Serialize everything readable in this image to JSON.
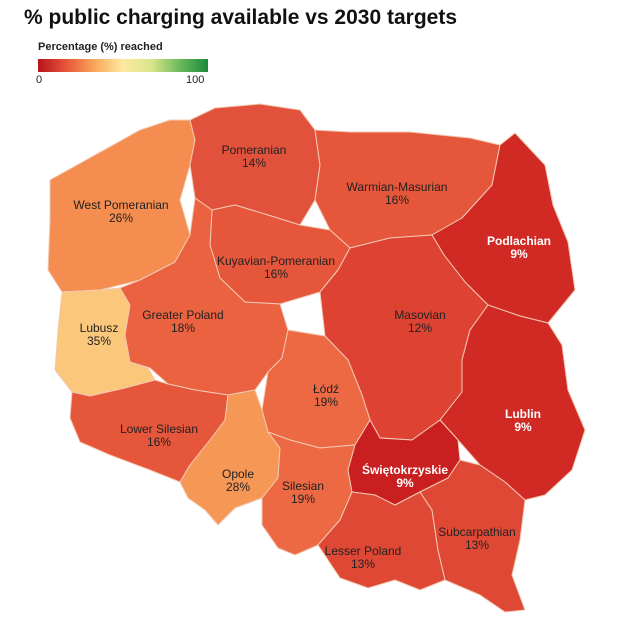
{
  "title": "% public charging available vs 2030 targets",
  "legend": {
    "title": "Percentage (%) reached",
    "min_label": "0",
    "max_label": "100",
    "range": [
      0,
      100
    ],
    "colors": [
      "#b7141c",
      "#e8553a",
      "#f8a85a",
      "#fde9a0",
      "#d8e68a",
      "#6cba5c",
      "#1b8a3c"
    ]
  },
  "map_data": {
    "type": "choropleth",
    "country": "Poland",
    "unit": "%",
    "regions": [
      {
        "id": "pomeranian",
        "name": "Pomeranian",
        "value": 14,
        "label": "14%",
        "color": "#e2513b"
      },
      {
        "id": "warmian",
        "name": "Warmian-Masurian",
        "value": 16,
        "label": "16%",
        "color": "#e5563a"
      },
      {
        "id": "podlachian",
        "name": "Podlachian",
        "value": 9,
        "label": "9%",
        "color": "#d12a24"
      },
      {
        "id": "westpom",
        "name": "West Pomeranian",
        "value": 26,
        "label": "26%",
        "color": "#f48d4f"
      },
      {
        "id": "kuyavian",
        "name": "Kuyavian-Pomeranian",
        "value": 16,
        "label": "16%",
        "color": "#e5563a"
      },
      {
        "id": "lubusz",
        "name": "Lubusz",
        "value": 35,
        "label": "35%",
        "color": "#fbc77b"
      },
      {
        "id": "greater",
        "name": "Greater Poland",
        "value": 18,
        "label": "18%",
        "color": "#ea6240"
      },
      {
        "id": "masovian",
        "name": "Masovian",
        "value": 12,
        "label": "12%",
        "color": "#dd4232"
      },
      {
        "id": "lodz",
        "name": "Łódź",
        "value": 19,
        "label": "19%",
        "color": "#ec6943"
      },
      {
        "id": "lublin",
        "name": "Lublin",
        "value": 9,
        "label": "9%",
        "color": "#d12a24"
      },
      {
        "id": "lowersil",
        "name": "Lower Silesian",
        "value": 16,
        "label": "16%",
        "color": "#e5563a"
      },
      {
        "id": "opole",
        "name": "Opole",
        "value": 28,
        "label": "28%",
        "color": "#f59755"
      },
      {
        "id": "silesian",
        "name": "Silesian",
        "value": 19,
        "label": "19%",
        "color": "#ec6943"
      },
      {
        "id": "swieto",
        "name": "Świętokrzyskie",
        "value": 9,
        "label": "9%",
        "color": "#c91f21"
      },
      {
        "id": "lesser",
        "name": "Lesser Poland",
        "value": 13,
        "label": "13%",
        "color": "#df4835"
      },
      {
        "id": "subcarp",
        "name": "Subcarpathian",
        "value": 13,
        "label": "13%",
        "color": "#df4835"
      }
    ]
  }
}
